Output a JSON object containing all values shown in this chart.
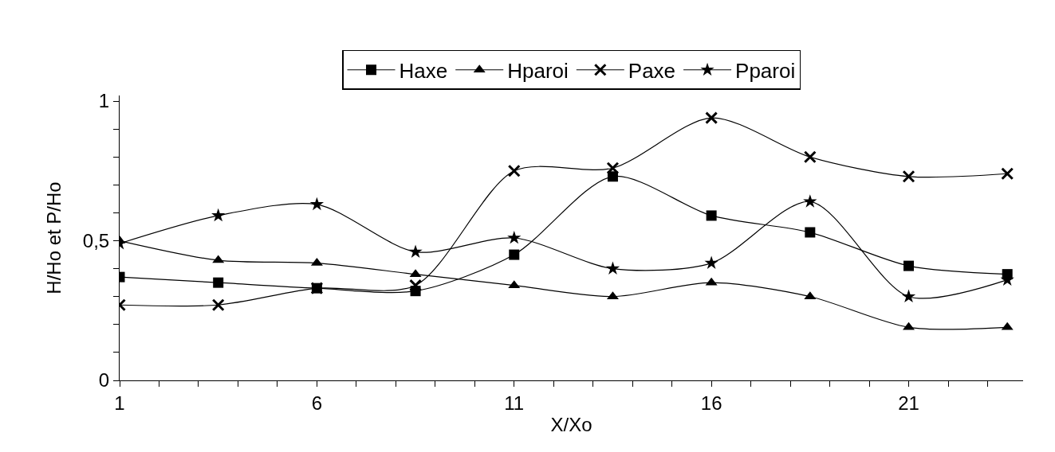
{
  "chart_data": {
    "type": "line",
    "xlabel": "X/Xo",
    "ylabel": "H/Ho et P/Ho",
    "x": [
      1,
      3.5,
      6,
      8.5,
      11,
      13.5,
      16,
      18.5,
      21,
      23.5
    ],
    "xlim": [
      1,
      23.9
    ],
    "xticks": [
      1,
      {
        "value": 2,
        "label": null
      },
      {
        "value": 3,
        "label": null
      },
      {
        "value": 4,
        "label": null
      },
      {
        "value": 5,
        "label": null
      },
      6,
      {
        "value": 7,
        "label": null
      },
      {
        "value": 8,
        "label": null
      },
      {
        "value": 9,
        "label": null
      },
      {
        "value": 10,
        "label": null
      },
      11,
      {
        "value": 12,
        "label": null
      },
      {
        "value": 13,
        "label": null
      },
      {
        "value": 14,
        "label": null
      },
      {
        "value": 15,
        "label": null
      },
      16,
      {
        "value": 17,
        "label": null
      },
      {
        "value": 18,
        "label": null
      },
      {
        "value": 19,
        "label": null
      },
      {
        "value": 20,
        "label": null
      },
      21,
      {
        "value": 22,
        "label": null
      },
      {
        "value": 23,
        "label": null
      }
    ],
    "ylim": [
      0,
      1.02
    ],
    "yticks": [
      0,
      {
        "value": 0.1,
        "label": null
      },
      {
        "value": 0.2,
        "label": null
      },
      {
        "value": 0.3,
        "label": null
      },
      {
        "value": 0.4,
        "label": null
      },
      {
        "value": 0.5,
        "label": "0,5"
      },
      {
        "value": 0.6,
        "label": null
      },
      {
        "value": 0.7,
        "label": null
      },
      {
        "value": 0.8,
        "label": null
      },
      {
        "value": 0.9,
        "label": null
      },
      1
    ],
    "grid": false,
    "legend": "top",
    "series": [
      {
        "name": "Haxe",
        "color": "#000000",
        "marker": "square",
        "values": [
          0.37,
          0.35,
          0.33,
          0.32,
          0.45,
          0.73,
          0.59,
          0.53,
          0.41,
          0.38
        ]
      },
      {
        "name": "Hparoi",
        "color": "#000000",
        "marker": "triangle",
        "values": [
          0.5,
          0.43,
          0.42,
          0.38,
          0.34,
          0.3,
          0.35,
          0.3,
          0.19,
          0.19
        ]
      },
      {
        "name": "Paxe",
        "color": "#000000",
        "marker": "cross",
        "values": [
          0.27,
          0.27,
          0.33,
          0.34,
          0.75,
          0.76,
          0.94,
          0.8,
          0.73,
          0.74
        ]
      },
      {
        "name": "Pparoi",
        "color": "#000000",
        "marker": "star",
        "values": [
          0.49,
          0.59,
          0.63,
          0.46,
          0.51,
          0.4,
          0.42,
          0.64,
          0.3,
          0.36
        ]
      }
    ]
  }
}
